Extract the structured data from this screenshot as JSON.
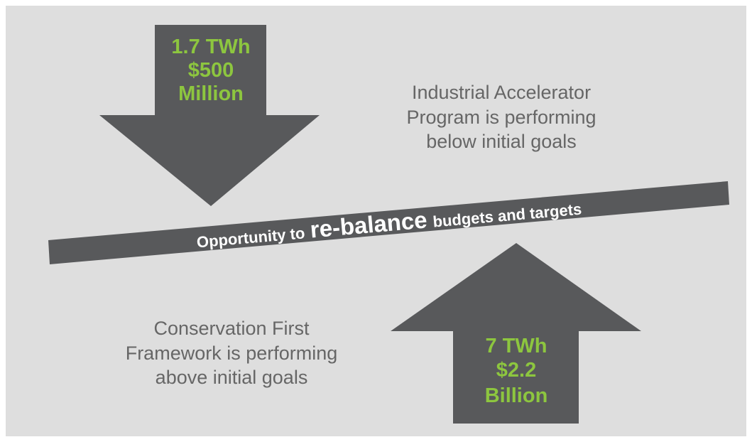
{
  "down_arrow": {
    "lines": [
      "1.7 TWh",
      "$500",
      "Million"
    ]
  },
  "up_arrow": {
    "lines": [
      "7 TWh",
      "$2.2",
      "Billion"
    ]
  },
  "top_note": {
    "lines": [
      "Industrial Accelerator",
      "Program is performing",
      "below initial goals"
    ]
  },
  "bottom_note": {
    "lines": [
      "Conservation First",
      "Framework is performing",
      "above initial goals"
    ]
  },
  "banner": {
    "parts": [
      "Opportunity to",
      "re-balance",
      "budgets and targets"
    ]
  }
}
